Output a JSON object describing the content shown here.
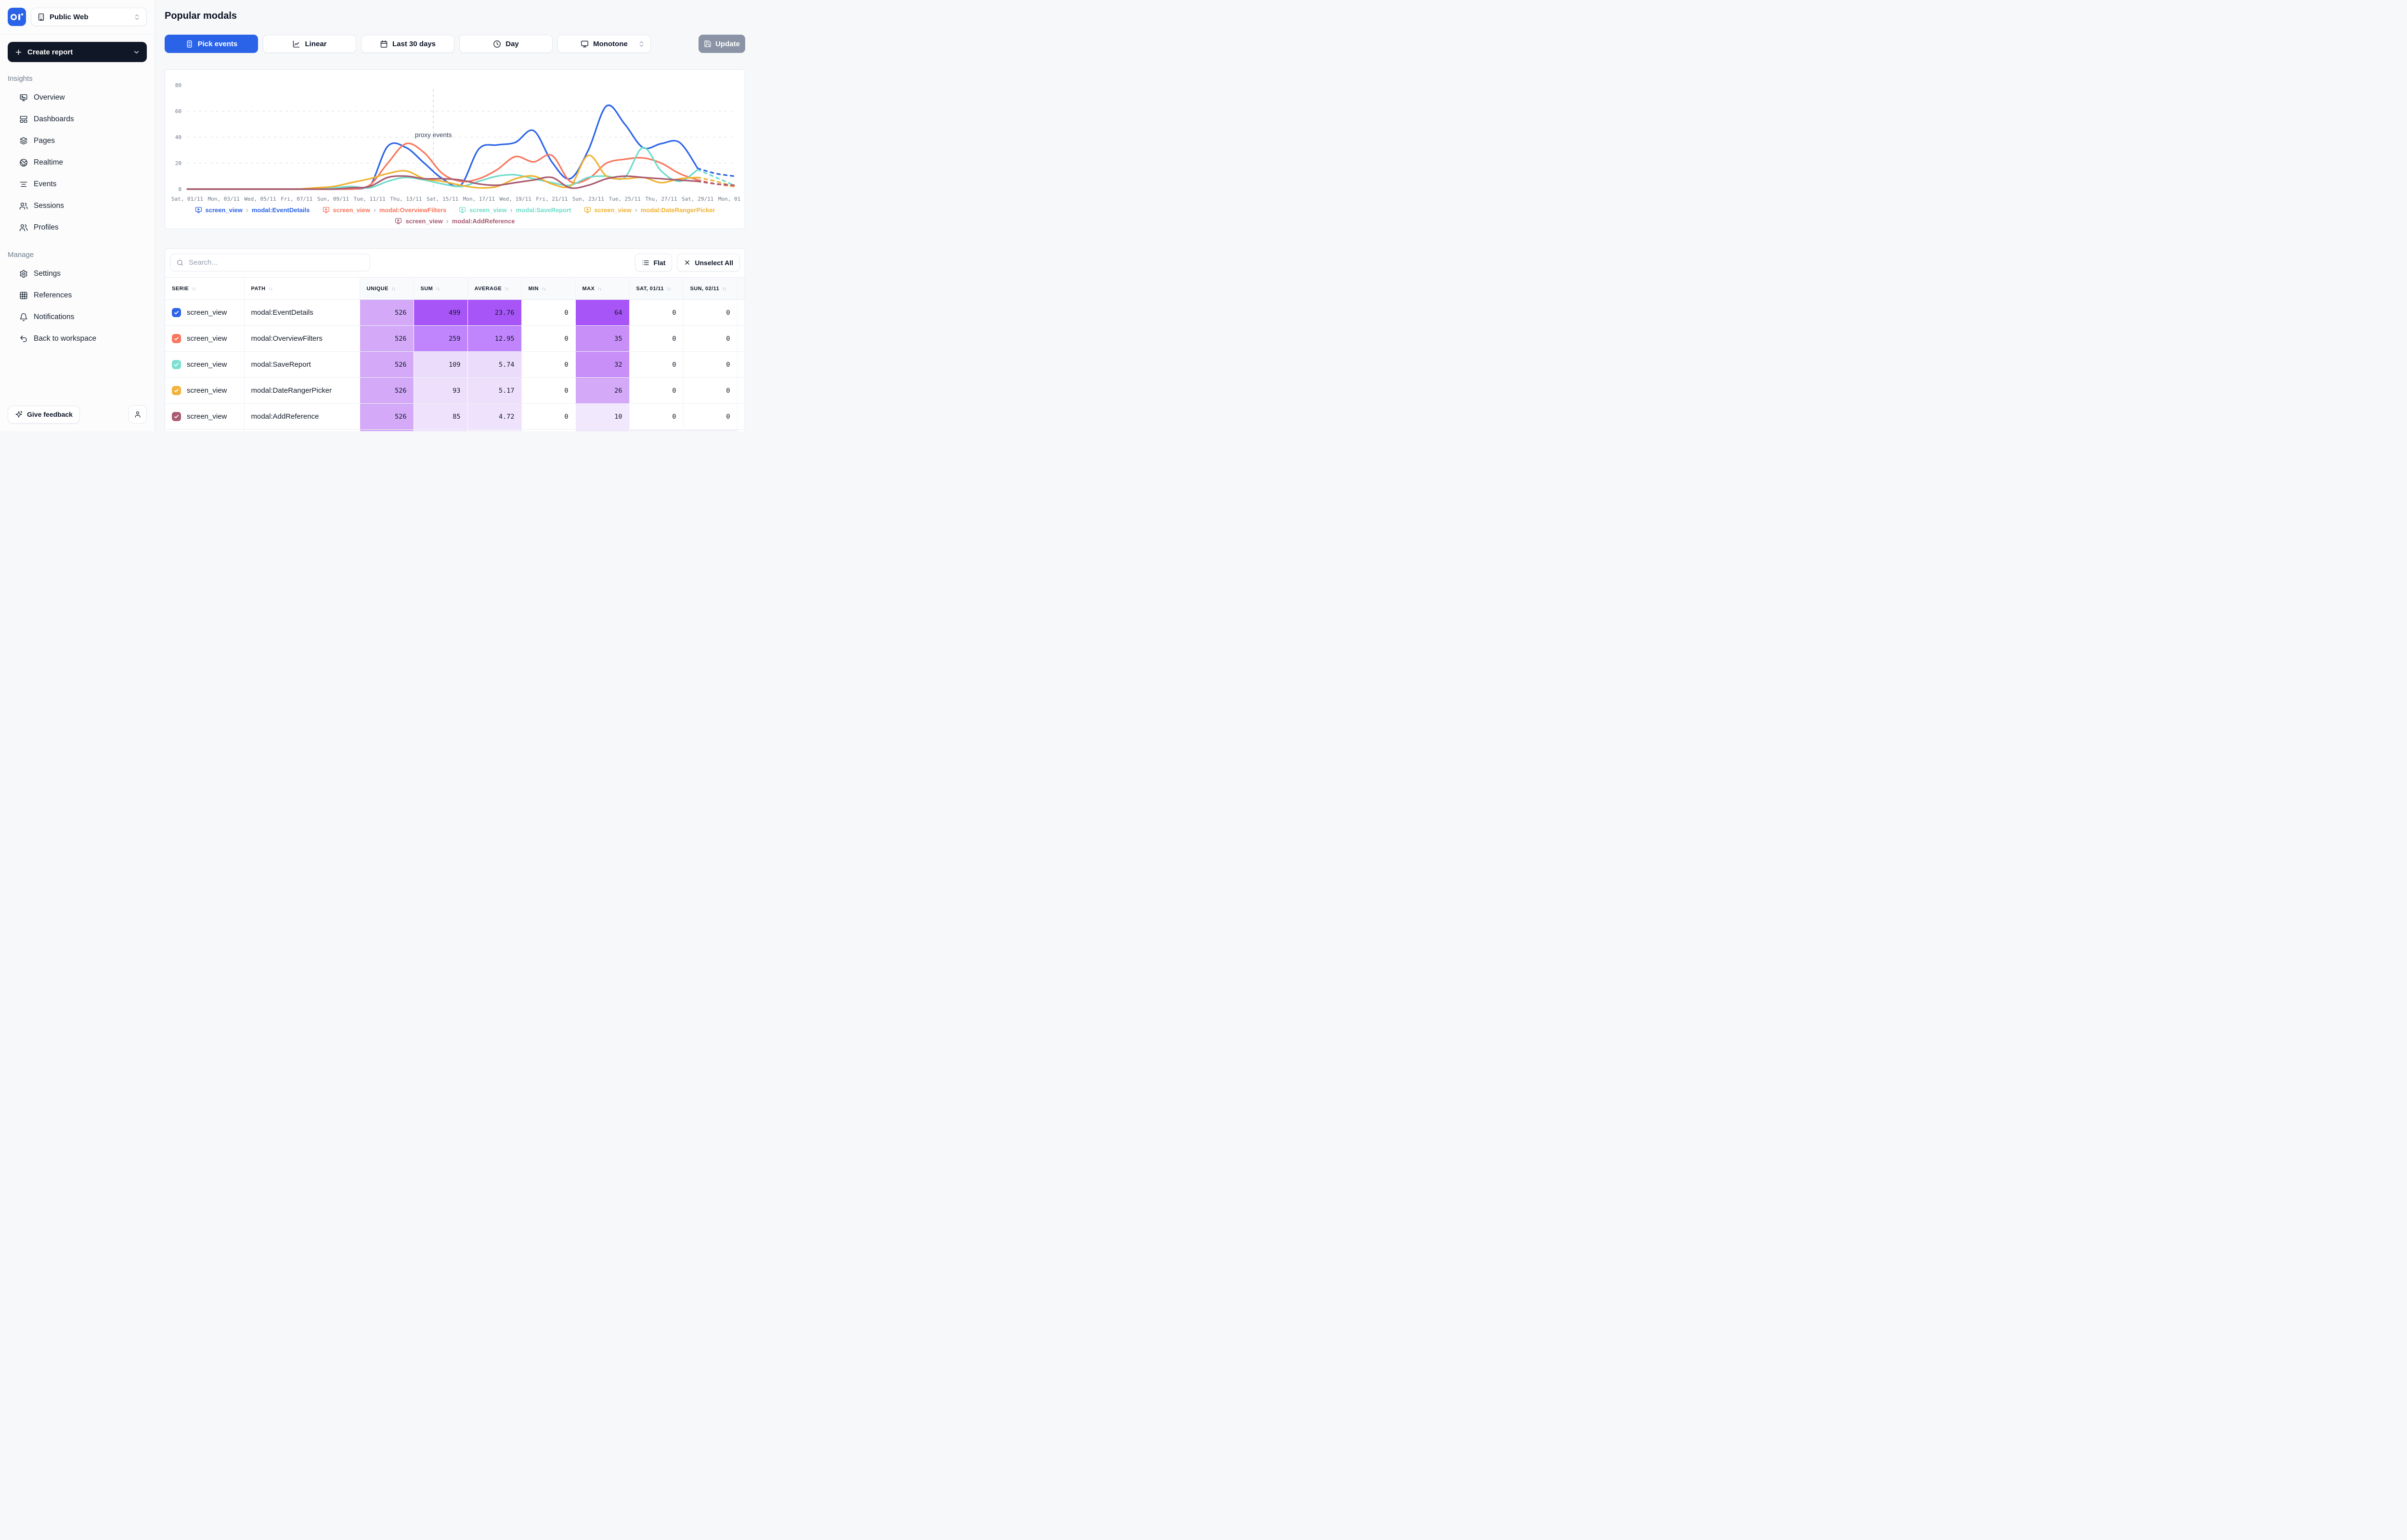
{
  "app": {
    "workspace": "Public Web",
    "page_title": "Popular modals"
  },
  "icon_glyphs": {
    "sort-icon": "↑↓",
    "legend-separator": "›"
  },
  "sidebar": {
    "create_report_label": "Create report",
    "sections": [
      {
        "label": "Insights",
        "items": [
          {
            "label": "Overview",
            "icon": "monitor-chart-icon"
          },
          {
            "label": "Dashboards",
            "icon": "dashboard-icon"
          },
          {
            "label": "Pages",
            "icon": "layers-icon"
          },
          {
            "label": "Realtime",
            "icon": "globe-icon"
          },
          {
            "label": "Events",
            "icon": "align-center-icon"
          },
          {
            "label": "Sessions",
            "icon": "users-icon"
          },
          {
            "label": "Profiles",
            "icon": "users-icon"
          }
        ]
      },
      {
        "label": "Manage",
        "items": [
          {
            "label": "Settings",
            "icon": "gear-icon"
          },
          {
            "label": "References",
            "icon": "grid-icon"
          },
          {
            "label": "Notifications",
            "icon": "bell-icon"
          },
          {
            "label": "Back to workspace",
            "icon": "undo-icon"
          }
        ]
      }
    ],
    "feedback_label": "Give feedback"
  },
  "toolbar": {
    "pick_events": "Pick events",
    "chart_type": "Linear",
    "range": "Last 30 days",
    "interval": "Day",
    "line_style": "Monotone",
    "update_label": "Update"
  },
  "chart_data": {
    "type": "line",
    "title": "",
    "xlabel": "",
    "ylabel": "",
    "ylim": [
      0,
      80
    ],
    "yticks": [
      0,
      20,
      40,
      60,
      80
    ],
    "grid": "dashed-horizontal",
    "legend_position": "bottom",
    "x": [
      "01/11",
      "02/11",
      "03/11",
      "04/11",
      "05/11",
      "06/11",
      "07/11",
      "08/11",
      "09/11",
      "10/11",
      "11/11",
      "12/11",
      "13/11",
      "14/11",
      "15/11",
      "16/11",
      "17/11",
      "18/11",
      "19/11",
      "20/11",
      "21/11",
      "22/11",
      "23/11",
      "24/11",
      "25/11",
      "26/11",
      "27/11",
      "28/11",
      "29/11",
      "30/11",
      "01/12"
    ],
    "x_tick_labels": [
      "Sat, 01/11",
      "Mon, 03/11",
      "Wed, 05/11",
      "Fri, 07/11",
      "Sun, 09/11",
      "Tue, 11/11",
      "Thu, 13/11",
      "Sat, 15/11",
      "Mon, 17/11",
      "Wed, 19/11",
      "Fri, 21/11",
      "Sun, 23/11",
      "Tue, 25/11",
      "Thu, 27/11",
      "Sat, 29/11",
      "Mon, 01/12"
    ],
    "annotation": {
      "text": "proxy events",
      "x_index": 13.5
    },
    "dashed_from_index": 28,
    "series": [
      {
        "event": "screen_view",
        "path": "modal:EventDetails",
        "color": "#2B63E8",
        "values": [
          0,
          0,
          0,
          0,
          0,
          0,
          0,
          0,
          0,
          0,
          2,
          33,
          32,
          20,
          8,
          3,
          31,
          34,
          36,
          45,
          21,
          8,
          30,
          64,
          50,
          32,
          35,
          36,
          16,
          12,
          10
        ]
      },
      {
        "event": "screen_view",
        "path": "modal:OverviewFilters",
        "color": "#F9765D",
        "values": [
          0,
          0,
          0,
          0,
          0,
          0,
          0,
          0,
          0,
          0,
          3,
          20,
          35,
          28,
          12,
          6,
          8,
          15,
          25,
          21,
          26,
          6,
          8,
          20,
          23,
          24,
          20,
          12,
          7,
          4,
          2
        ]
      },
      {
        "event": "screen_view",
        "path": "modal:SaveReport",
        "color": "#6FDCCB",
        "values": [
          0,
          0,
          0,
          0,
          0,
          0,
          0,
          0,
          1,
          2,
          1,
          6,
          9,
          7,
          4,
          2,
          6,
          10,
          11,
          8,
          5,
          3,
          9,
          10,
          9,
          32,
          14,
          6,
          15,
          9,
          3
        ]
      },
      {
        "event": "screen_view",
        "path": "modal:DateRangerPicker",
        "color": "#F0B232",
        "values": [
          0,
          0,
          0,
          0,
          0,
          0,
          0,
          1,
          2,
          5,
          8,
          12,
          14,
          8,
          6,
          3,
          1,
          2,
          8,
          10,
          4,
          2,
          26,
          10,
          8,
          9,
          5,
          8,
          9,
          6,
          2
        ]
      },
      {
        "event": "screen_view",
        "path": "modal:AddReference",
        "color": "#A85A70",
        "values": [
          0,
          0,
          0,
          0,
          0,
          0,
          0,
          0,
          0,
          1,
          2,
          9,
          10,
          8,
          8,
          7,
          4,
          3,
          5,
          7,
          9,
          1,
          3,
          8,
          10,
          9,
          8,
          7,
          6,
          4,
          3
        ]
      }
    ]
  },
  "table": {
    "search_placeholder": "Search...",
    "flat_label": "Flat",
    "unselect_label": "Unselect All",
    "columns": {
      "serie": "SERIE",
      "path": "PATH",
      "unique": "UNIQUE",
      "sum": "SUM",
      "average": "AVERAGE",
      "min": "MIN",
      "max": "MAX",
      "sat": "SAT, 01/11",
      "sun": "SUN, 02/11"
    },
    "rows": [
      {
        "serie": "screen_view",
        "path": "modal:EventDetails",
        "color": "#2F64E8",
        "cells": {
          "unique": {
            "v": "526",
            "bg": "#D3A9F8"
          },
          "sum": {
            "v": "499",
            "bg": "#A855F7"
          },
          "average": {
            "v": "23.76",
            "bg": "#A855F7"
          },
          "min": {
            "v": "0"
          },
          "max": {
            "v": "64",
            "bg": "#A855F7"
          },
          "sat": {
            "v": "0"
          },
          "sun": {
            "v": "0"
          }
        }
      },
      {
        "serie": "screen_view",
        "path": "modal:OverviewFilters",
        "color": "#F9775E",
        "cells": {
          "unique": {
            "v": "526",
            "bg": "#D3A9F8"
          },
          "sum": {
            "v": "259",
            "bg": "#C084FC"
          },
          "average": {
            "v": "12.95",
            "bg": "#C084FC"
          },
          "min": {
            "v": "0"
          },
          "max": {
            "v": "35",
            "bg": "#C98FF9"
          },
          "sat": {
            "v": "0"
          },
          "sun": {
            "v": "0"
          }
        }
      },
      {
        "serie": "screen_view",
        "path": "modal:SaveReport",
        "color": "#7CDFD0",
        "cells": {
          "unique": {
            "v": "526",
            "bg": "#D3A9F8"
          },
          "sum": {
            "v": "109",
            "bg": "#ECDCFB"
          },
          "average": {
            "v": "5.74",
            "bg": "#ECDCFB"
          },
          "min": {
            "v": "0"
          },
          "max": {
            "v": "32",
            "bg": "#C98FF9"
          },
          "sat": {
            "v": "0"
          },
          "sun": {
            "v": "0"
          }
        }
      },
      {
        "serie": "screen_view",
        "path": "modal:DateRangerPicker",
        "color": "#F2B33D",
        "cells": {
          "unique": {
            "v": "526",
            "bg": "#D3A9F8"
          },
          "sum": {
            "v": "93",
            "bg": "#EEE0FC"
          },
          "average": {
            "v": "5.17",
            "bg": "#EEE0FC"
          },
          "min": {
            "v": "0"
          },
          "max": {
            "v": "26",
            "bg": "#D3A9F8"
          },
          "sat": {
            "v": "0"
          },
          "sun": {
            "v": "0"
          }
        }
      },
      {
        "serie": "screen_view",
        "path": "modal:AddReference",
        "color": "#A85C72",
        "cells": {
          "unique": {
            "v": "526",
            "bg": "#D3A9F8"
          },
          "sum": {
            "v": "85",
            "bg": "#EFE2FC"
          },
          "average": {
            "v": "4.72",
            "bg": "#EFE2FC"
          },
          "min": {
            "v": "0"
          },
          "max": {
            "v": "10",
            "bg": "#F2E8FD"
          },
          "sat": {
            "v": "0"
          },
          "sun": {
            "v": "0"
          }
        }
      }
    ]
  }
}
